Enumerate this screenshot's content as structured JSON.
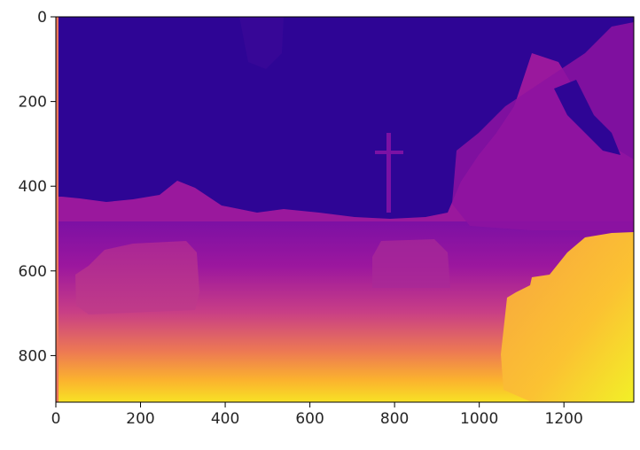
{
  "chart_data": {
    "type": "heatmap",
    "title": "",
    "xlabel": "",
    "ylabel": "",
    "colormap": "plasma",
    "image_width": 1365,
    "image_height": 910,
    "xlim": [
      0,
      1365
    ],
    "ylim": [
      910,
      0
    ],
    "x_ticks": [
      {
        "value": 0,
        "label": "0"
      },
      {
        "value": 200,
        "label": "200"
      },
      {
        "value": 400,
        "label": "400"
      },
      {
        "value": 600,
        "label": "600"
      },
      {
        "value": 800,
        "label": "800"
      },
      {
        "value": 1000,
        "label": "1000"
      },
      {
        "value": 1200,
        "label": "1200"
      }
    ],
    "y_ticks": [
      {
        "value": 0,
        "label": "0"
      },
      {
        "value": 200,
        "label": "200"
      },
      {
        "value": 400,
        "label": "400"
      },
      {
        "value": 600,
        "label": "600"
      },
      {
        "value": 800,
        "label": "800"
      }
    ],
    "grid": false,
    "colors": {
      "sky": "#2c0594",
      "far": "#6a00a8",
      "mid": "#9c179e",
      "near": "#e16462",
      "nearest": "#f0f921"
    }
  }
}
